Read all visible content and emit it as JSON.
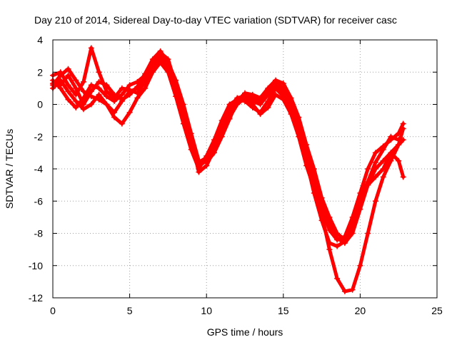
{
  "chart_data": {
    "type": "line",
    "title": "Day 210 of 2014, Sidereal Day-to-day VTEC variation (SDTVAR) for receiver casc",
    "xlabel": "GPS time / hours",
    "ylabel": "SDTVAR / TECUs",
    "xlim": [
      0,
      25
    ],
    "ylim": [
      -12,
      4
    ],
    "xticks": [
      0,
      5,
      10,
      15,
      20,
      25
    ],
    "yticks": [
      -12,
      -10,
      -8,
      -6,
      -4,
      -2,
      0,
      2,
      4
    ],
    "grid": true,
    "color": "#ff0000",
    "series": [
      {
        "x": [
          0,
          0.5,
          1,
          1.5,
          2,
          2.5,
          3,
          3.5,
          4,
          4.5,
          5,
          5.5,
          6,
          6.5,
          7,
          7.5,
          8,
          8.5,
          9,
          9.5,
          10,
          10.5,
          11,
          11.5,
          12,
          12.5,
          13,
          13.5,
          14,
          14.5,
          15,
          15.5,
          16,
          16.5,
          17,
          17.5,
          18,
          18.5,
          19,
          19.5,
          20,
          20.5,
          21,
          21.5,
          22,
          22.5,
          22.8
        ],
        "y": [
          1.2,
          1.8,
          2.2,
          1.5,
          0.8,
          0.5,
          0.3,
          0.0,
          -0.5,
          0.2,
          0.8,
          1.0,
          1.6,
          2.4,
          3.0,
          2.2,
          0.8,
          -0.8,
          -2.5,
          -3.8,
          -3.5,
          -2.5,
          -1.2,
          -0.2,
          0.4,
          0.5,
          0.2,
          0.0,
          0.6,
          1.2,
          0.8,
          -0.2,
          -1.5,
          -3.0,
          -4.5,
          -6.0,
          -7.5,
          -8.3,
          -8.6,
          -8.0,
          -6.5,
          -5.0,
          -4.0,
          -3.5,
          -3.0,
          -2.5,
          -2.2
        ]
      },
      {
        "x": [
          0,
          0.5,
          1,
          1.5,
          2,
          2.5,
          3,
          3.5,
          4,
          4.5,
          5,
          5.5,
          6,
          6.5,
          7,
          7.5,
          8,
          8.5,
          9,
          9.5,
          10,
          10.5,
          11,
          11.5,
          12,
          12.5,
          13,
          13.5,
          14,
          14.5,
          15,
          15.5,
          16,
          16.5,
          17,
          17.5,
          18,
          18.5,
          19,
          19.5,
          20,
          20.5,
          21,
          21.5,
          22,
          22.5,
          22.8
        ],
        "y": [
          1.5,
          1.0,
          0.3,
          -0.2,
          0.4,
          1.2,
          1.0,
          0.5,
          0.2,
          0.6,
          1.2,
          1.4,
          1.8,
          2.6,
          3.2,
          2.8,
          1.2,
          -0.5,
          -2.2,
          -4.2,
          -3.8,
          -2.8,
          -1.5,
          -0.4,
          0.2,
          0.6,
          0.4,
          0.2,
          0.8,
          1.4,
          1.0,
          0.0,
          -1.2,
          -2.8,
          -4.8,
          -6.8,
          -9.0,
          -10.8,
          -11.6,
          -11.5,
          -10.0,
          -8.0,
          -6.0,
          -4.5,
          -3.5,
          -2.5,
          -1.5
        ]
      },
      {
        "x": [
          0,
          0.5,
          1,
          1.5,
          2,
          2.5,
          3,
          3.5,
          4,
          4.5,
          5,
          5.5,
          6,
          6.5,
          7,
          7.5,
          8,
          8.5,
          9,
          9.5,
          10,
          10.5,
          11,
          11.5,
          12,
          12.5,
          13,
          13.5,
          14,
          14.5,
          15,
          15.5,
          16,
          16.5,
          17,
          17.5,
          18,
          18.5,
          19,
          19.5,
          20,
          20.5,
          21,
          21.5,
          22,
          22.5,
          22.8
        ],
        "y": [
          1.0,
          1.5,
          0.8,
          0.2,
          -0.3,
          0.0,
          0.6,
          0.0,
          -0.8,
          -1.2,
          -0.5,
          0.4,
          1.0,
          2.0,
          2.6,
          2.0,
          0.5,
          -1.2,
          -2.8,
          -4.0,
          -3.2,
          -2.2,
          -1.0,
          0.0,
          0.3,
          0.2,
          -0.2,
          -0.5,
          0.2,
          1.0,
          0.5,
          -0.5,
          -1.8,
          -3.5,
          -5.5,
          -7.2,
          -8.6,
          -8.8,
          -8.5,
          -7.5,
          -6.0,
          -5.0,
          -4.5,
          -4.0,
          -3.0,
          -3.5,
          -4.5
        ]
      },
      {
        "x": [
          0,
          0.5,
          1,
          1.5,
          2,
          2.5,
          3,
          3.5,
          4,
          4.5,
          5,
          5.5,
          6,
          6.5,
          7,
          7.5,
          8,
          8.5,
          9,
          9.5,
          10,
          10.5,
          11,
          11.5,
          12,
          12.5,
          13,
          13.5,
          14,
          14.5,
          15,
          15.5,
          16,
          16.5,
          17,
          17.5,
          18,
          18.5,
          19,
          19.5,
          20,
          20.5,
          21,
          21.5,
          22,
          22.5,
          22.8
        ],
        "y": [
          1.8,
          2.0,
          1.2,
          0.6,
          1.4,
          3.5,
          2.0,
          0.8,
          0.4,
          1.0,
          0.9,
          0.7,
          1.4,
          2.2,
          2.8,
          2.4,
          1.0,
          -0.6,
          -2.0,
          -3.6,
          -3.3,
          -2.6,
          -1.8,
          -0.8,
          0.0,
          0.4,
          0.0,
          -0.6,
          -0.2,
          0.6,
          0.3,
          -0.6,
          -2.0,
          -3.8,
          -5.2,
          -6.4,
          -7.8,
          -8.4,
          -8.2,
          -7.0,
          -5.5,
          -4.0,
          -3.0,
          -2.6,
          -2.2,
          -1.8,
          -1.2
        ]
      },
      {
        "x": [
          0,
          0.5,
          1,
          1.5,
          2,
          2.5,
          3,
          3.5,
          4,
          4.5,
          5,
          5.5,
          6,
          6.5,
          7,
          7.5,
          8,
          8.5,
          9,
          9.5,
          10,
          10.5,
          11,
          11.5,
          12,
          12.5,
          13,
          13.5,
          14,
          14.5,
          15,
          15.5,
          16,
          16.5,
          17,
          17.5,
          18,
          18.5,
          19,
          19.5,
          20,
          20.5,
          21,
          21.5,
          22,
          22.5
        ],
        "y": [
          1.3,
          1.2,
          1.8,
          1.0,
          0.0,
          0.8,
          1.4,
          1.2,
          0.6,
          0.3,
          0.6,
          1.1,
          1.9,
          2.8,
          3.3,
          2.6,
          1.5,
          0.0,
          -1.8,
          -3.5,
          -3.6,
          -3.0,
          -2.0,
          -0.9,
          0.2,
          0.7,
          0.6,
          0.4,
          1.0,
          1.5,
          1.3,
          0.4,
          -0.8,
          -2.5,
          -4.0,
          -5.8,
          -7.0,
          -8.0,
          -8.4,
          -7.2,
          -5.8,
          -4.8,
          -3.6,
          -2.8,
          -2.0,
          -2.2
        ]
      }
    ]
  }
}
